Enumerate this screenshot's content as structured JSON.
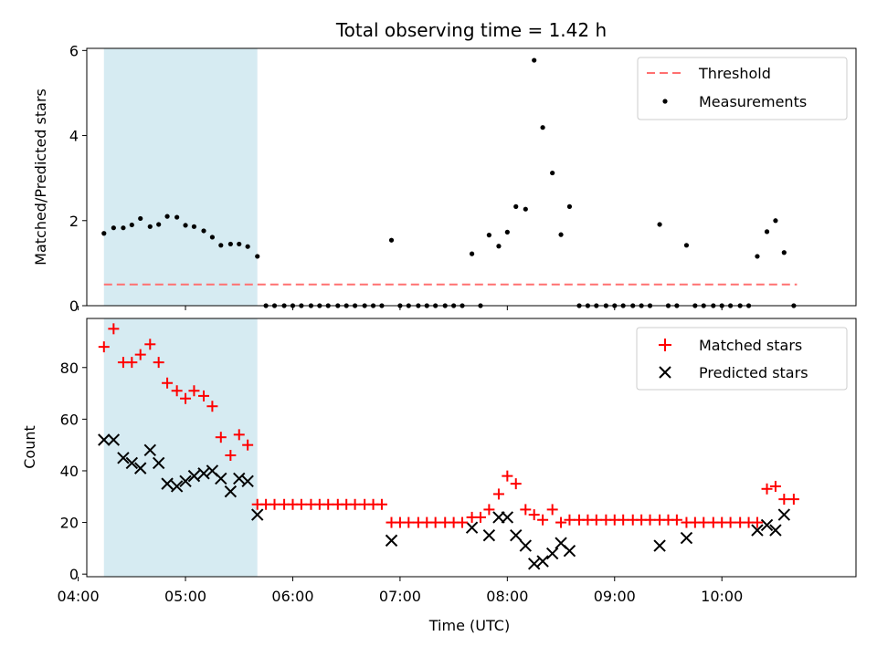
{
  "chart_data": [
    {
      "type": "scatter",
      "title": "Total observing time = 1.42 h",
      "xlabel": "",
      "ylabel": "Matched/Predicted stars",
      "ylim": [
        0,
        6.05
      ],
      "yticks": [
        "0",
        "2",
        "4",
        "6"
      ],
      "xlim_hours": [
        4.08,
        11.25
      ],
      "grid": false,
      "legend": "top-right",
      "shaded_span": {
        "x_start": 4.24,
        "x_end": 5.67,
        "color": "#add8e6"
      },
      "threshold": {
        "name": "Threshold",
        "y": 0.5,
        "x_start": 4.24,
        "x_end": 10.7,
        "color": "#ff7070"
      },
      "series": [
        {
          "name": "Measurements",
          "color": "#000000",
          "x": [
            4.24,
            4.33,
            4.42,
            4.5,
            4.58,
            4.67,
            4.75,
            4.83,
            4.92,
            5.0,
            5.08,
            5.17,
            5.25,
            5.33,
            5.42,
            5.5,
            5.58,
            5.67,
            5.75,
            5.83,
            5.92,
            6.0,
            6.08,
            6.17,
            6.25,
            6.33,
            6.42,
            6.5,
            6.58,
            6.67,
            6.75,
            6.83,
            6.92,
            7.0,
            7.08,
            7.17,
            7.25,
            7.33,
            7.42,
            7.5,
            7.58,
            7.67,
            7.75,
            7.83,
            7.92,
            8.0,
            8.08,
            8.17,
            8.25,
            8.33,
            8.42,
            8.5,
            8.58,
            8.67,
            8.75,
            8.83,
            8.92,
            9.0,
            9.08,
            9.17,
            9.25,
            9.33,
            9.42,
            9.5,
            9.58,
            9.67,
            9.75,
            9.83,
            9.92,
            10.0,
            10.08,
            10.17,
            10.25,
            10.33,
            10.42,
            10.5,
            10.58,
            10.67
          ],
          "y": [
            1.7,
            1.83,
            1.83,
            1.9,
            2.05,
            1.86,
            1.91,
            2.1,
            2.08,
            1.89,
            1.86,
            1.76,
            1.61,
            1.42,
            1.45,
            1.45,
            1.39,
            1.16,
            0,
            0,
            0,
            0,
            0,
            0,
            0,
            0,
            0,
            0,
            0,
            0,
            0,
            0,
            1.54,
            0,
            0,
            0,
            0,
            0,
            0,
            0,
            0,
            1.22,
            0,
            1.66,
            1.4,
            1.73,
            2.33,
            2.27,
            5.77,
            4.19,
            3.12,
            1.67,
            2.33,
            0,
            0,
            0,
            0,
            0,
            0,
            0,
            0,
            0,
            1.91,
            0,
            0,
            1.42,
            0,
            0,
            0,
            0,
            0,
            0,
            0,
            1.16,
            1.74,
            2.0,
            1.25,
            0
          ]
        }
      ]
    },
    {
      "type": "scatter",
      "title": "",
      "xlabel": "Time (UTC)",
      "ylabel": "Count",
      "ylim": [
        -1,
        99
      ],
      "yticks": [
        "0",
        "20",
        "40",
        "60",
        "80"
      ],
      "xticks": [
        "04:00",
        "05:00",
        "06:00",
        "07:00",
        "08:00",
        "09:00",
        "10:00"
      ],
      "xlim_hours": [
        4.08,
        11.25
      ],
      "grid": false,
      "legend": "top-right",
      "shaded_span": {
        "x_start": 4.24,
        "x_end": 5.67,
        "color": "#add8e6"
      },
      "series": [
        {
          "name": "Matched stars",
          "marker": "plus",
          "color": "#ff0000",
          "x": [
            4.24,
            4.33,
            4.42,
            4.5,
            4.58,
            4.67,
            4.75,
            4.83,
            4.92,
            5.0,
            5.08,
            5.17,
            5.25,
            5.33,
            5.42,
            5.5,
            5.58,
            5.67,
            5.75,
            5.83,
            5.92,
            6.0,
            6.08,
            6.17,
            6.25,
            6.33,
            6.42,
            6.5,
            6.58,
            6.67,
            6.75,
            6.83,
            6.92,
            7.0,
            7.08,
            7.17,
            7.25,
            7.33,
            7.42,
            7.5,
            7.58,
            7.67,
            7.75,
            7.83,
            7.92,
            8.0,
            8.08,
            8.17,
            8.25,
            8.33,
            8.42,
            8.5,
            8.58,
            8.67,
            8.75,
            8.83,
            8.92,
            9.0,
            9.08,
            9.17,
            9.25,
            9.33,
            9.42,
            9.5,
            9.58,
            9.67,
            9.75,
            9.83,
            9.92,
            10.0,
            10.08,
            10.17,
            10.25,
            10.33,
            10.42,
            10.5,
            10.58,
            10.67
          ],
          "y": [
            88,
            95,
            82,
            82,
            85,
            89,
            82,
            74,
            71,
            68,
            71,
            69,
            65,
            53,
            46,
            54,
            50,
            27,
            27,
            27,
            27,
            27,
            27,
            27,
            27,
            27,
            27,
            27,
            27,
            27,
            27,
            27,
            20,
            20,
            20,
            20,
            20,
            20,
            20,
            20,
            20,
            22,
            22,
            25,
            31,
            38,
            35,
            25,
            23,
            21,
            25,
            20,
            21,
            21,
            21,
            21,
            21,
            21,
            21,
            21,
            21,
            21,
            21,
            21,
            21,
            20,
            20,
            20,
            20,
            20,
            20,
            20,
            20,
            20,
            33,
            34,
            29,
            29
          ]
        },
        {
          "name": "Predicted stars",
          "marker": "x",
          "color": "#000000",
          "x": [
            4.24,
            4.33,
            4.42,
            4.5,
            4.58,
            4.67,
            4.75,
            4.83,
            4.92,
            5.0,
            5.08,
            5.17,
            5.25,
            5.33,
            5.42,
            5.5,
            5.58,
            5.67,
            6.92,
            7.67,
            7.83,
            7.92,
            8.0,
            8.08,
            8.17,
            8.25,
            8.33,
            8.42,
            8.5,
            8.58,
            9.42,
            9.67,
            10.33,
            10.42,
            10.5,
            10.58
          ],
          "y": [
            52,
            52,
            45,
            43,
            41,
            48,
            43,
            35,
            34,
            36,
            38,
            39,
            40,
            37,
            32,
            37,
            36,
            23,
            13,
            18,
            15,
            22,
            22,
            15,
            11,
            4,
            5,
            8,
            12,
            9,
            11,
            14,
            17,
            19,
            17,
            23
          ]
        }
      ]
    }
  ]
}
